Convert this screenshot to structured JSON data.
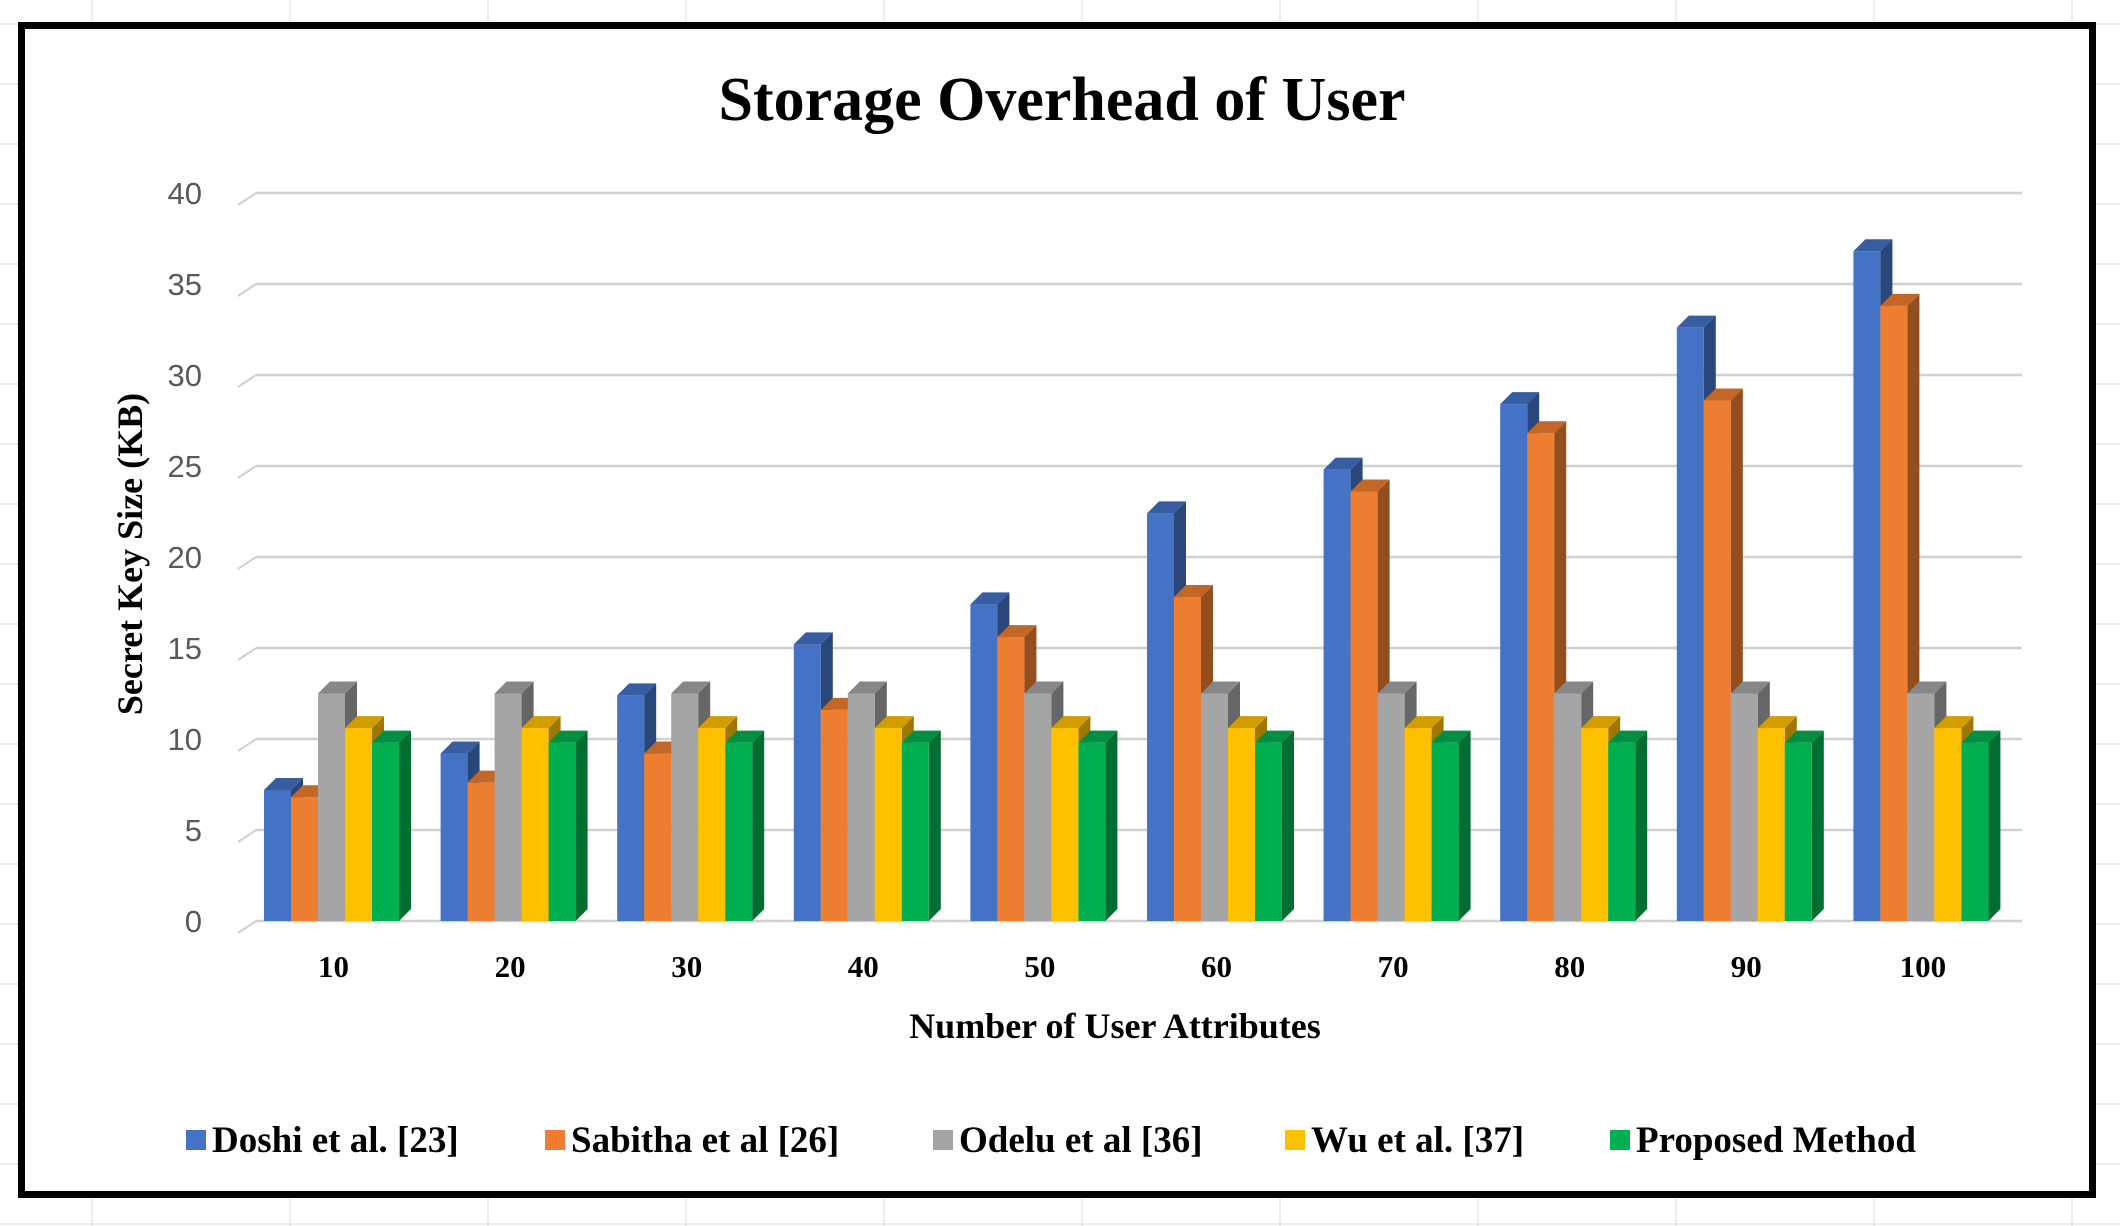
{
  "chart_data": {
    "type": "bar",
    "title": "Storage Overhead of User",
    "xlabel": "Number of User Attributes",
    "ylabel": "Secret Key Size (KB)",
    "ylim": [
      0,
      40
    ],
    "yticks": [
      0,
      5,
      10,
      15,
      20,
      25,
      30,
      35,
      40
    ],
    "grid": true,
    "legend_position": "bottom",
    "categories": [
      "10",
      "20",
      "30",
      "40",
      "50",
      "60",
      "70",
      "80",
      "90",
      "100"
    ],
    "series": [
      {
        "name": "Doshi et al. [23]",
        "color": "#4472C4",
        "values": [
          7.2,
          9.2,
          12.4,
          15.2,
          17.4,
          22.4,
          24.8,
          28.4,
          32.6,
          36.8
        ]
      },
      {
        "name": "Sabitha et al [26]",
        "color": "#ED7D31",
        "values": [
          6.8,
          7.6,
          9.2,
          11.6,
          15.6,
          17.8,
          23.6,
          26.8,
          28.6,
          33.8
        ]
      },
      {
        "name": "Odelu et al [36]",
        "color": "#A5A5A5",
        "values": [
          12.5,
          12.5,
          12.5,
          12.5,
          12.5,
          12.5,
          12.5,
          12.5,
          12.5,
          12.5
        ]
      },
      {
        "name": "Wu et al. [37]",
        "color": "#FFC000",
        "values": [
          10.6,
          10.6,
          10.6,
          10.6,
          10.6,
          10.6,
          10.6,
          10.6,
          10.6,
          10.6
        ]
      },
      {
        "name": "Proposed Method",
        "color": "#00B050",
        "values": [
          9.8,
          9.8,
          9.8,
          9.8,
          9.8,
          9.8,
          9.8,
          9.8,
          9.8,
          9.8
        ]
      }
    ]
  }
}
